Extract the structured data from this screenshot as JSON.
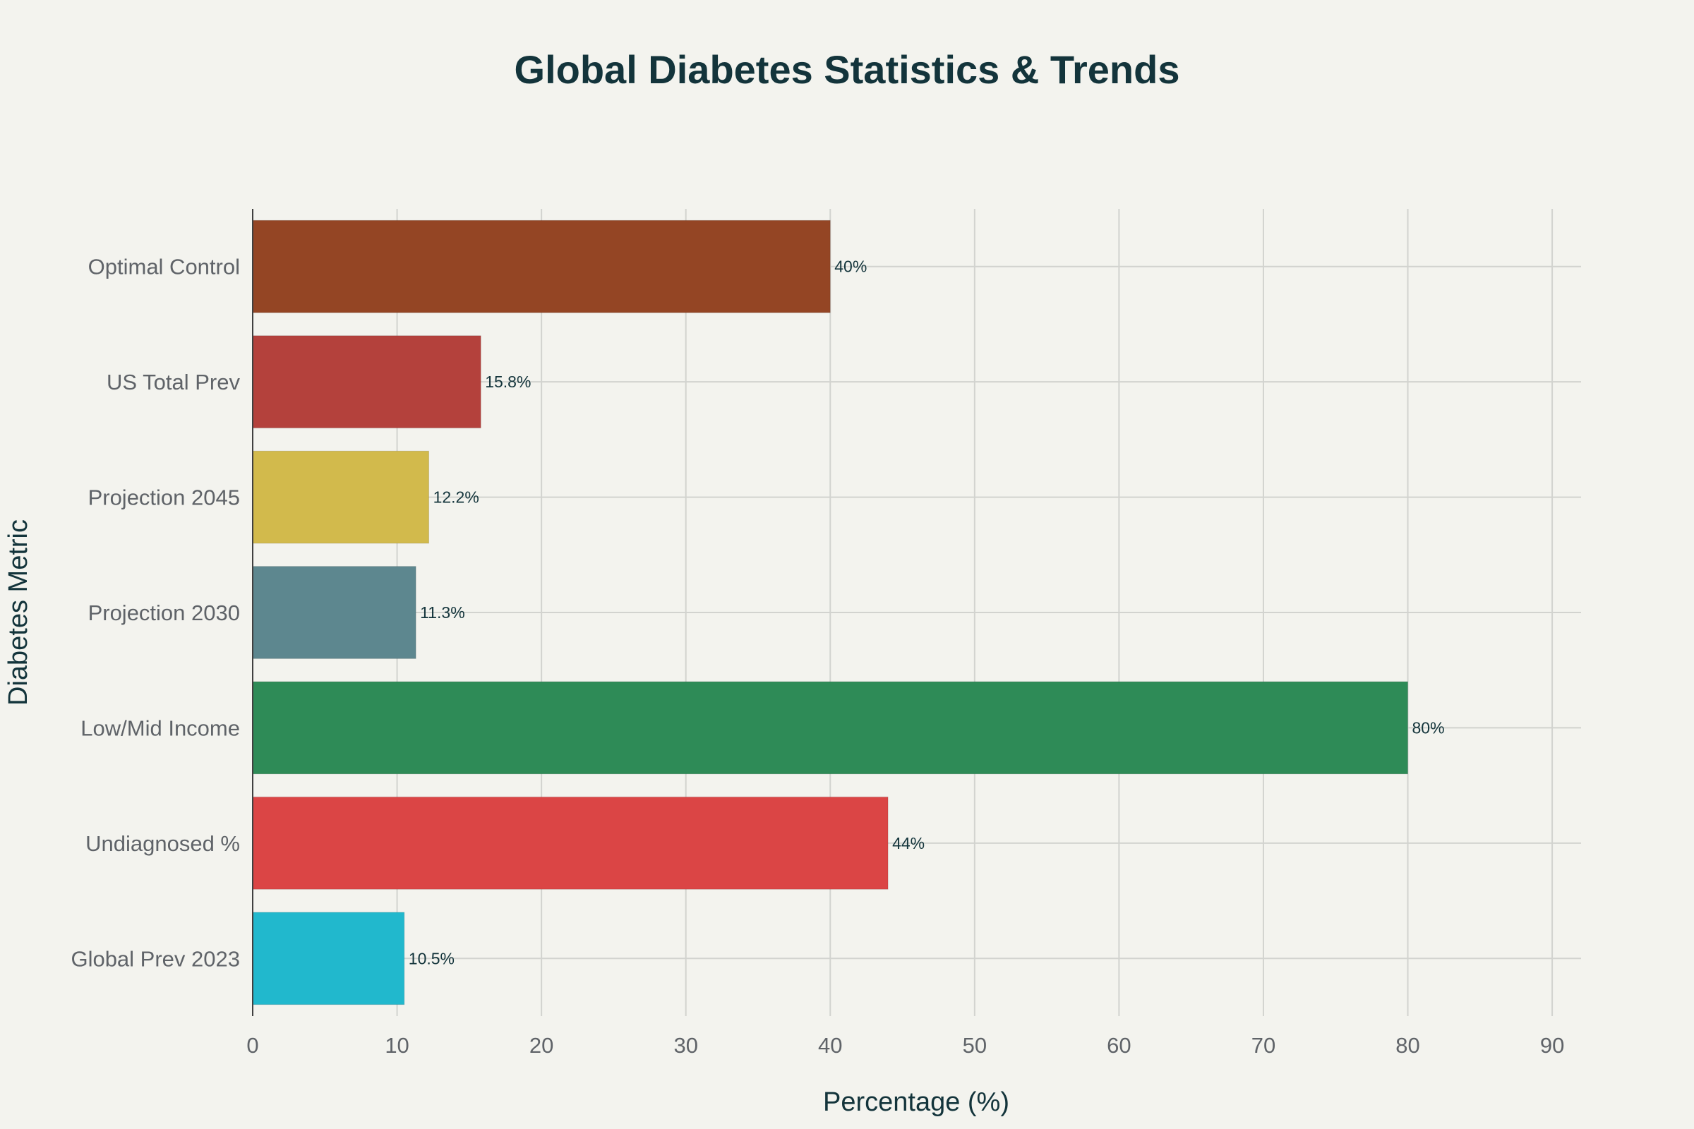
{
  "chart_data": {
    "type": "bar",
    "orientation": "horizontal",
    "title": "Global Diabetes Statistics & Trends",
    "xlabel": "Percentage (%)",
    "ylabel": "Diabetes Metric",
    "xlim": [
      0,
      92
    ],
    "x_ticks": [
      0,
      10,
      20,
      30,
      40,
      50,
      60,
      70,
      80,
      90
    ],
    "grid": true,
    "legend": "none",
    "categories": [
      "Global Prev 2023",
      "Undiagnosed %",
      "Low/Mid Income",
      "Projection 2030",
      "Projection 2045",
      "US Total Prev",
      "Optimal Control"
    ],
    "values": [
      10.5,
      44,
      80,
      11.3,
      12.2,
      15.8,
      40
    ],
    "data_labels": [
      "10.5%",
      "44%",
      "80%",
      "11.3%",
      "12.2%",
      "15.8%",
      "40%"
    ],
    "colors": [
      "#21b8cd",
      "#db4545",
      "#2e8b57",
      "#5d878f",
      "#d2ba4c",
      "#b4413c",
      "#944524"
    ],
    "colors_meta": {
      "background": "#f3f3ee",
      "grid": "#d2d3cf",
      "title": "#13343b",
      "tick": "#5f6368"
    }
  }
}
